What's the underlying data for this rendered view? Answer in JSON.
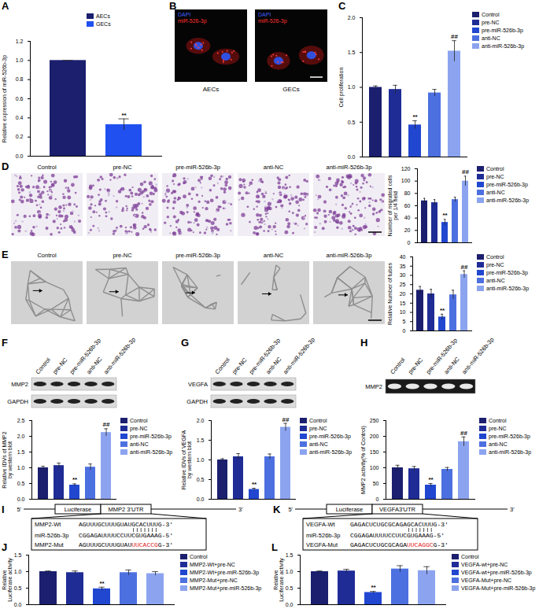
{
  "chart_data": [
    {
      "type": "bar",
      "title": "A",
      "categories": [
        "AECs",
        "GECs"
      ],
      "values": [
        1.0,
        0.33
      ],
      "errors": [
        0,
        0.06
      ],
      "colors": [
        "#1b1f6e",
        "#2050f0"
      ],
      "ylabel": "Relative expression of miR-526b-3p",
      "ylim": [
        0,
        1.2
      ],
      "yticks": [
        {
          "value": 0,
          "label": "0.0"
        },
        0.2,
        0.4,
        0.6,
        0.8,
        {
          "value": 1,
          "label": "1.0"
        },
        1.2
      ],
      "annotations": [
        {
          "category": "GECs",
          "text": "**"
        }
      ],
      "legend": "top-right",
      "tick_labels": "y"
    },
    {
      "type": "bar",
      "title": "C",
      "categories": [
        "Control",
        "pre-NC",
        "pre-miR-526b-3p",
        "anti-NC",
        "anti-miR-526b-3p"
      ],
      "values": [
        1.0,
        0.97,
        0.46,
        0.92,
        1.52
      ],
      "errors": [
        0.02,
        0.06,
        0.06,
        0.05,
        0.15
      ],
      "colors": [
        "#1b1f6e",
        "#1f2c96",
        "#2147d0",
        "#4d70e0",
        "#8ca4f0"
      ],
      "ylabel": "Cell proliferation",
      "ylim": [
        0,
        2
      ],
      "yticks": [
        {
          "value": 0,
          "label": "0.0"
        },
        0.5,
        {
          "value": 1,
          "label": "1.0"
        },
        1.5,
        {
          "value": 2,
          "label": "2.0"
        }
      ],
      "annotations": [
        {
          "category": "pre-miR-526b-3p",
          "text": "**"
        },
        {
          "category": "anti-miR-526b-3p",
          "text": "##"
        }
      ],
      "legend": "right",
      "tick_labels": "y"
    },
    {
      "type": "bar",
      "title": "D",
      "categories": [
        "Control",
        "pre-NC",
        "pre-miR-526b-3p",
        "anti-NC",
        "anti-miR-526b-3p"
      ],
      "values": [
        68,
        65,
        33,
        70,
        100
      ],
      "errors": [
        4,
        5,
        5,
        4,
        8
      ],
      "colors": [
        "#1b1f6e",
        "#1f2c96",
        "#2147d0",
        "#4d70e0",
        "#8ca4f0"
      ],
      "ylabel": "Number of migrated cells\nper 1/4 field",
      "ylim": [
        0,
        120
      ],
      "yticks": [
        0,
        20,
        40,
        60,
        80,
        100,
        120
      ],
      "annotations": [
        {
          "category": "pre-miR-526b-3p",
          "text": "**"
        },
        {
          "category": "anti-miR-526b-3p",
          "text": "##"
        }
      ],
      "legend": "right",
      "tick_labels": "y"
    },
    {
      "type": "bar",
      "title": "E",
      "categories": [
        "Control",
        "pre-NC",
        "pre-miR-526b-3p",
        "anti-NC",
        "anti-miR-526b-3p"
      ],
      "values": [
        22,
        20,
        7.5,
        19.5,
        30.5
      ],
      "errors": [
        2,
        2.5,
        1.5,
        2.5,
        2
      ],
      "colors": [
        "#1b1f6e",
        "#1f2c96",
        "#2147d0",
        "#4d70e0",
        "#8ca4f0"
      ],
      "ylabel": "Relative Number of tubes",
      "ylim": [
        0,
        40
      ],
      "yticks": [
        0,
        5,
        10,
        15,
        20,
        25,
        30,
        35,
        40
      ],
      "annotations": [
        {
          "category": "pre-miR-526b-3p",
          "text": "**"
        },
        {
          "category": "anti-miR-526b-3p",
          "text": "##"
        }
      ],
      "legend": "right",
      "tick_labels": "y"
    },
    {
      "type": "bar",
      "title": "F",
      "categories": [
        "Control",
        "pre-NC",
        "pre-miR-526b-3p",
        "anti-NC",
        "anti-miR-526b-3p"
      ],
      "values": [
        1.0,
        1.07,
        0.45,
        1.02,
        2.12
      ],
      "errors": [
        0.05,
        0.08,
        0.04,
        0.1,
        0.12
      ],
      "colors": [
        "#1b1f6e",
        "#1f2c96",
        "#2147d0",
        "#4d70e0",
        "#8ca4f0"
      ],
      "ylabel": "Relative IDVs of MMP2\nby western blot",
      "ylim": [
        0,
        2.5
      ],
      "yticks": [
        {
          "value": 0,
          "label": "0.0"
        },
        0.5,
        {
          "value": 1,
          "label": "1.0"
        },
        1.5,
        {
          "value": 2,
          "label": "2.0"
        },
        2.5
      ],
      "annotations": [
        {
          "category": "pre-miR-526b-3p",
          "text": "**"
        },
        {
          "category": "anti-miR-526b-3p",
          "text": "##"
        }
      ],
      "legend": "right",
      "tick_labels": "y"
    },
    {
      "type": "bar",
      "title": "G",
      "categories": [
        "Control",
        "pre-NC",
        "pre-miR-526b-3p",
        "anti-NC",
        "anti-miR-526b-3p"
      ],
      "values": [
        1.0,
        1.08,
        0.25,
        1.08,
        1.83
      ],
      "errors": [
        0.03,
        0.08,
        0.03,
        0.07,
        0.1
      ],
      "colors": [
        "#1b1f6e",
        "#1f2c96",
        "#2147d0",
        "#4d70e0",
        "#8ca4f0"
      ],
      "ylabel": "Relative IDVs of VEGFA\nby western blot",
      "ylim": [
        0,
        2
      ],
      "yticks": [
        {
          "value": 0,
          "label": "0.0"
        },
        0.5,
        {
          "value": 1,
          "label": "1.0"
        },
        1.5,
        {
          "value": 2,
          "label": "2.0"
        }
      ],
      "annotations": [
        {
          "category": "pre-miR-526b-3p",
          "text": "**"
        },
        {
          "category": "anti-miR-526b-3p",
          "text": "##"
        }
      ],
      "legend": "right",
      "tick_labels": "y"
    },
    {
      "type": "bar",
      "title": "H",
      "categories": [
        "Control",
        "pre-NC",
        "pre-miR-526b-3p",
        "anti-NC",
        "anti-miR-526b-3p"
      ],
      "values": [
        100,
        97,
        45,
        95,
        183
      ],
      "errors": [
        8,
        7,
        5,
        6,
        15
      ],
      "colors": [
        "#1b1f6e",
        "#1f2c96",
        "#2147d0",
        "#4d70e0",
        "#8ca4f0"
      ],
      "ylabel": "MMP2 activity(% of Control)",
      "ylim": [
        0,
        250
      ],
      "yticks": [
        0,
        50,
        100,
        150,
        200,
        250
      ],
      "annotations": [
        {
          "category": "pre-miR-526b-3p",
          "text": "**"
        },
        {
          "category": "anti-miR-526b-3p",
          "text": "##"
        }
      ],
      "legend": "right",
      "tick_labels": "y"
    },
    {
      "type": "bar",
      "title": "J",
      "categories": [
        "Control",
        "MMP2-Wt+pre-NC",
        "MMP2-Wt+pre-miR-526b-3p",
        "MMP2-Mut+pre-NC",
        "MMP2-Mut+pre-miR-526b-3p"
      ],
      "values": [
        1.0,
        0.97,
        0.48,
        0.97,
        0.94
      ],
      "errors": [
        0.02,
        0.05,
        0.05,
        0.08,
        0.06
      ],
      "colors": [
        "#1b1f6e",
        "#1f2c96",
        "#2147d0",
        "#4d70e0",
        "#8ca4f0"
      ],
      "ylabel": "Relative\nLuciferase activity",
      "ylim": [
        0,
        1.5
      ],
      "yticks": [
        {
          "value": 0,
          "label": "0.0"
        },
        0.5,
        {
          "value": 1,
          "label": "1.0"
        },
        1.5
      ],
      "annotations": [
        {
          "category": "MMP2-Wt+pre-miR-526b-3p",
          "text": "**"
        }
      ],
      "legend": "right",
      "tick_labels": "y"
    },
    {
      "type": "bar",
      "title": "L",
      "categories": [
        "Control",
        "VEGFA-wt+pre-NC",
        "VEGFA-wt+pre-miR-526b-3p",
        "VEGFA-Mut+pre-NC",
        "VEGFA-Mut+pre-miR-526b-3p"
      ],
      "values": [
        1.0,
        1.02,
        0.37,
        1.08,
        1.03
      ],
      "errors": [
        0.02,
        0.05,
        0.03,
        0.1,
        0.12
      ],
      "colors": [
        "#1b1f6e",
        "#1f2c96",
        "#2147d0",
        "#4d70e0",
        "#8ca4f0"
      ],
      "ylabel": "Relative\nLuciferase activity",
      "ylim": [
        0,
        1.5
      ],
      "yticks": [
        {
          "value": 0,
          "label": "0.0"
        },
        0.5,
        {
          "value": 1,
          "label": "1.0"
        },
        1.5
      ],
      "annotations": [
        {
          "category": "VEGFA-wt+pre-miR-526b-3p",
          "text": "**"
        }
      ],
      "legend": "right",
      "tick_labels": "y"
    }
  ],
  "micrographs": [
    {
      "panel": "B",
      "stains": [
        {
          "text": "DAPI",
          "color": "#4060ff"
        },
        {
          "text": "miR-526-3p",
          "color": "#ff3030"
        }
      ],
      "labels": [
        "AECs",
        "GECs"
      ]
    },
    {
      "panel": "D",
      "labels": [
        "Control",
        "pre-NC",
        "pre-miR-526b-3p",
        "anti-NC",
        "anti-miR-526b-3p"
      ]
    },
    {
      "panel": "E",
      "labels": [
        "Control",
        "pre-NC",
        "pre-miR-526b-3p",
        "anti-NC",
        "anti-miR-526b-3p"
      ]
    }
  ],
  "blots": [
    {
      "panel": "F",
      "lanes": [
        "Control",
        "pre-NC",
        "pre-miR-526b-3p",
        "anti-NC",
        "anti-miR-526b-3p"
      ],
      "rows": [
        "MMP2",
        "GAPDH"
      ]
    },
    {
      "panel": "G",
      "lanes": [
        "Control",
        "pre-NC",
        "pre-miR-526b-3p",
        "anti-NC",
        "anti-miR-526b-3p"
      ],
      "rows": [
        "VEGFA",
        "GAPDH"
      ]
    },
    {
      "panel": "H",
      "lanes": [
        "Control",
        "pre-NC",
        "pre-miR-526b-3p",
        "anti-NC",
        "anti-miR-526b-3p"
      ],
      "rows": [
        "MMP2"
      ]
    }
  ],
  "sequences": [
    {
      "panel": "I",
      "five": "5'",
      "three": "3'",
      "reporter": "Luciferase",
      "utr": "MMP2 3'UTR",
      "rows": [
        {
          "name": "MMP2-Wt",
          "parts": [
            {
              "text": "AGUUUGCUUUGUAUGCACUUUG-3'"
            }
          ]
        },
        {
          "name": "miR-526b-3p",
          "parts": [
            {
              "text": "CGGAGAUUUUCCUUCGUGAAAG-5'"
            }
          ]
        },
        {
          "name": "MMP2-Mut",
          "parts": [
            {
              "text": "AGUUUGCUUUGUAU"
            },
            {
              "text": "UUCACCG",
              "color": "#e02020"
            },
            {
              "text": "G-3'"
            }
          ]
        }
      ]
    },
    {
      "panel": "K",
      "five": "5'",
      "three": "3'",
      "reporter": "Luciferase",
      "utr": "VEGFA3'UTR",
      "rows": [
        {
          "name": "VEGFA-Wt",
          "parts": [
            {
              "text": "GAGACUCUGCGCAGAGCACUUUG-3'"
            }
          ]
        },
        {
          "name": "miR-526b-3p",
          "parts": [
            {
              "text": "CGGAGAUUUUCCUUCGUGAAAG-5'"
            }
          ]
        },
        {
          "name": "VEGFA-Mut",
          "parts": [
            {
              "text": "GAGACUCUGCGCAGA"
            },
            {
              "text": "UUCAGGC",
              "color": "#e02020"
            },
            {
              "text": "G-3'"
            }
          ]
        }
      ]
    }
  ]
}
